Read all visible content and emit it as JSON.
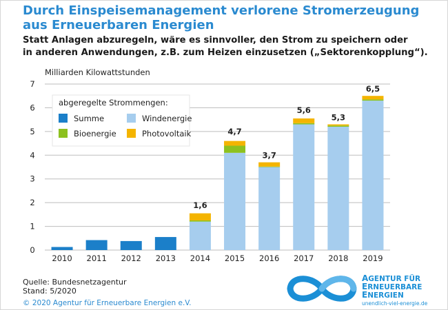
{
  "header": {
    "title_line1": "Durch Einspeisemanagement verlorene Stromerzeugung",
    "title_line2": "aus Erneuerbaren Energien",
    "subtitle_line1": "Statt Anlagen abzuregeln, wäre es sinnvoller, den Strom zu speichern oder",
    "subtitle_line2": "in anderen Anwendungen, z.B. zum Heizen einzusetzen („Sektorenkopplung“)."
  },
  "chart_data": {
    "type": "bar",
    "ylabel": "Milliarden Kilowattstunden",
    "ylim": [
      0,
      7
    ],
    "yticks": [
      0,
      1,
      2,
      3,
      4,
      5,
      6,
      7
    ],
    "grid": true,
    "legend": {
      "title": "abgeregelte Strommengen:",
      "position": "top-left",
      "entries": [
        {
          "key": "summe",
          "label": "Summe",
          "color": "#1b7fc9"
        },
        {
          "key": "wind",
          "label": "Windenergie",
          "color": "#a6cdee"
        },
        {
          "key": "bio",
          "label": "Bioenergie",
          "color": "#8dc11f"
        },
        {
          "key": "pv",
          "label": "Photovoltaik",
          "color": "#f4b400"
        }
      ]
    },
    "categories": [
      "2010",
      "2011",
      "2012",
      "2013",
      "2014",
      "2015",
      "2016",
      "2017",
      "2018",
      "2019"
    ],
    "series": [
      {
        "name": "Summe",
        "key": "summe",
        "color": "#1b7fc9",
        "values": [
          0.13,
          0.42,
          0.38,
          0.55,
          0,
          0,
          0,
          0,
          0,
          0
        ]
      },
      {
        "name": "Windenergie",
        "key": "wind",
        "color": "#a6cdee",
        "values": [
          0,
          0,
          0,
          0,
          1.2,
          4.1,
          3.5,
          5.3,
          5.2,
          6.3
        ]
      },
      {
        "name": "Bioenergie",
        "key": "bio",
        "color": "#8dc11f",
        "values": [
          0,
          0,
          0,
          0,
          0.05,
          0.3,
          0.02,
          0.05,
          0.05,
          0.05
        ]
      },
      {
        "name": "Photovoltaik",
        "key": "pv",
        "color": "#f4b400",
        "values": [
          0,
          0,
          0,
          0,
          0.3,
          0.2,
          0.18,
          0.2,
          0.05,
          0.15
        ]
      }
    ],
    "totals": [
      null,
      null,
      null,
      null,
      1.6,
      4.7,
      3.7,
      5.6,
      5.3,
      6.5
    ],
    "total_labels": [
      "",
      "",
      "",
      "",
      "1,6",
      "4,7",
      "3,7",
      "5,6",
      "5,3",
      "6,5"
    ]
  },
  "footer": {
    "source": "Quelle: Bundesnetzagentur",
    "stand": "Stand: 5/2020",
    "copyright": "© 2020 Agentur für Erneuerbare Energien e.V."
  },
  "logo": {
    "line1_cap": "A",
    "line1_rest": "GENTUR FÜR",
    "line2_cap": "E",
    "line2_rest": "RNEUERBARE",
    "line3_cap": "E",
    "line3_rest": "NERGIEN",
    "url": "unendlich-viel-energie.de",
    "color": "#1b8fd6"
  }
}
